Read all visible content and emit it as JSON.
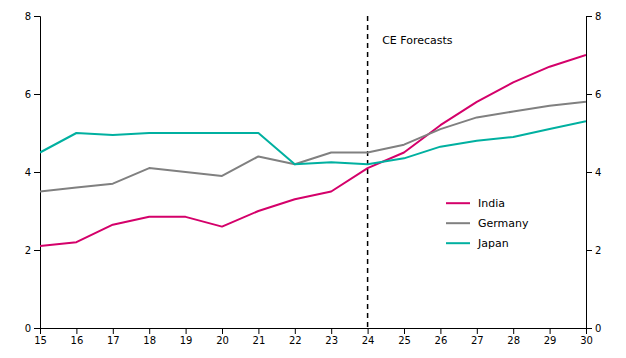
{
  "chart_data": {
    "type": "line",
    "x": [
      15,
      16,
      17,
      18,
      19,
      20,
      21,
      22,
      23,
      24,
      25,
      26,
      27,
      28,
      29,
      30
    ],
    "series": [
      {
        "name": "India",
        "color": "#d4006a",
        "values": [
          2.1,
          2.2,
          2.65,
          2.85,
          2.85,
          2.6,
          3.0,
          3.3,
          3.5,
          4.1,
          4.5,
          5.2,
          5.8,
          6.3,
          6.7,
          7.0
        ]
      },
      {
        "name": "Germany",
        "color": "#808080",
        "values": [
          3.5,
          3.6,
          3.7,
          4.1,
          4.0,
          3.9,
          4.4,
          4.2,
          4.5,
          4.5,
          4.7,
          5.1,
          5.4,
          5.55,
          5.7,
          5.8
        ]
      },
      {
        "name": "Japan",
        "color": "#00b0a0",
        "values": [
          4.5,
          5.0,
          4.95,
          5.0,
          5.0,
          5.0,
          5.0,
          4.2,
          4.25,
          4.2,
          4.35,
          4.65,
          4.8,
          4.9,
          5.1,
          5.3
        ]
      }
    ],
    "xlim": [
      15,
      30
    ],
    "xticks": [
      15,
      16,
      17,
      18,
      19,
      20,
      21,
      22,
      23,
      24,
      25,
      26,
      27,
      28,
      29,
      30
    ],
    "ylim": [
      0,
      8
    ],
    "yticks": [
      0,
      2,
      4,
      6,
      8
    ],
    "y2lim": [
      0,
      8
    ],
    "y2ticks": [
      0,
      2,
      4,
      6,
      8
    ],
    "vlines": [
      {
        "x": 24,
        "line_style": "dashed",
        "color": "#000000"
      }
    ],
    "annotations": [
      {
        "text": "CE Forecasts",
        "x": 24.4,
        "y": 7.5,
        "color": "#000000"
      }
    ],
    "legend": "lower right",
    "grid": false
  }
}
